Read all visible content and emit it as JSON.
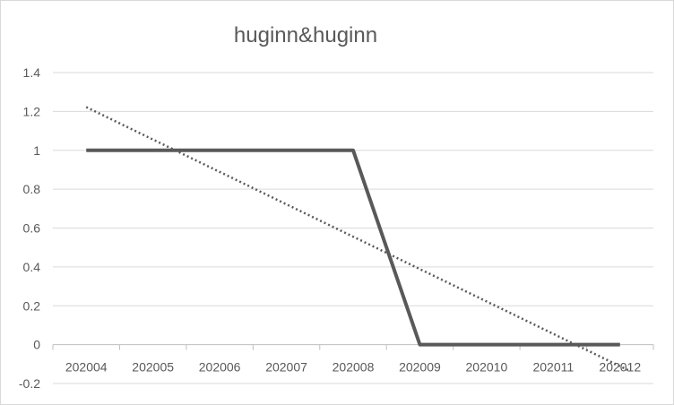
{
  "chart_data": {
    "type": "line",
    "title": "huginn&huginn",
    "categories": [
      "202004",
      "202005",
      "202006",
      "202007",
      "202008",
      "202009",
      "202010",
      "202011",
      "202012"
    ],
    "series": [
      {
        "values": [
          1,
          1,
          1,
          1,
          1,
          0,
          0,
          0,
          0
        ]
      }
    ],
    "trendline": {
      "type": "linear",
      "style": "dotted"
    },
    "ylim": [
      -0.2,
      1.4
    ],
    "yticks": [
      -0.2,
      0,
      0.2,
      0.4,
      0.6,
      0.8,
      1,
      1.2,
      1.4
    ],
    "ytick_labels": [
      "-0.2",
      "0",
      "0.2",
      "0.4",
      "0.6",
      "0.8",
      "1",
      "1.2",
      "1.4"
    ],
    "grid": true,
    "legend": "none",
    "colors": {
      "series": "#595959",
      "grid": "#d9d9d9",
      "text": "#595959"
    }
  }
}
